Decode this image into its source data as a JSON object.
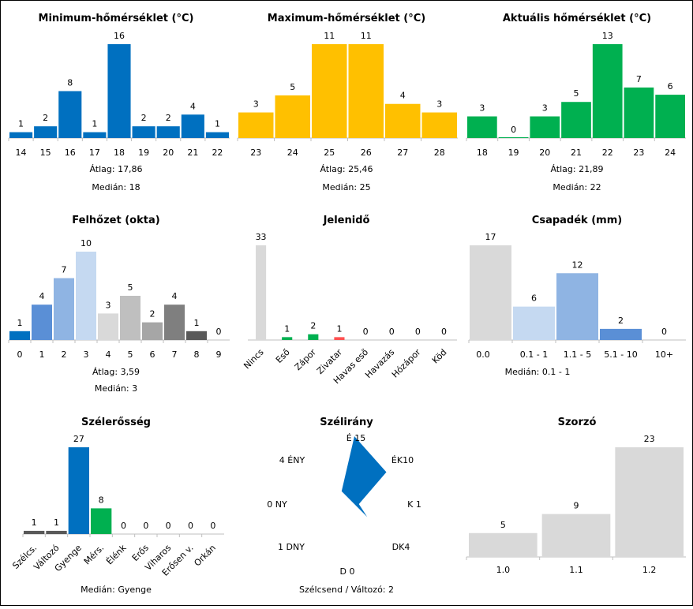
{
  "chart_data": [
    {
      "id": "min",
      "type": "bar",
      "title": "Minimum-hőmérséklet (°C)",
      "categories": [
        "14",
        "15",
        "16",
        "17",
        "18",
        "19",
        "20",
        "21",
        "22"
      ],
      "values": [
        1,
        2,
        8,
        1,
        16,
        2,
        2,
        4,
        1
      ],
      "colors": [
        "#0070c0"
      ],
      "stats": [
        "Átlag: 17,86",
        "Medián: 18"
      ]
    },
    {
      "id": "max",
      "type": "bar",
      "title": "Maximum-hőmérséklet (°C)",
      "categories": [
        "23",
        "24",
        "25",
        "26",
        "27",
        "28"
      ],
      "values": [
        3,
        5,
        11,
        11,
        4,
        3
      ],
      "colors": [
        "#ffc000"
      ],
      "stats": [
        "Átlag: 25,46",
        "Medián: 25"
      ]
    },
    {
      "id": "akt",
      "type": "bar",
      "title": "Aktuális hőmérséklet (°C)",
      "categories": [
        "18",
        "19",
        "20",
        "21",
        "22",
        "23",
        "24"
      ],
      "values": [
        3,
        0,
        3,
        5,
        13,
        7,
        6
      ],
      "colors": [
        "#00b050"
      ],
      "stats": [
        "Átlag: 21,89",
        "Medián: 22"
      ]
    },
    {
      "id": "felho",
      "type": "bar",
      "title": "Felhőzet (okta)",
      "categories": [
        "0",
        "1",
        "2",
        "3",
        "4",
        "5",
        "6",
        "7",
        "8",
        "9"
      ],
      "values": [
        1,
        4,
        7,
        10,
        3,
        5,
        2,
        4,
        1,
        0
      ],
      "colors": [
        "#0070c0",
        "#5a8fd6",
        "#8fb4e3",
        "#c5d9f1",
        "#d9d9d9",
        "#bfbfbf",
        "#a6a6a6",
        "#7f7f7f",
        "#595959",
        "#404040"
      ],
      "stats": [
        "Átlag: 3,59",
        "Medián: 3"
      ]
    },
    {
      "id": "jelen",
      "type": "bar",
      "title": "Jelenidő",
      "categories": [
        "Nincs",
        "Eső",
        "Zápor",
        "Zivatar",
        "Havas eső",
        "Havazás",
        "Hózápor",
        "Köd"
      ],
      "values": [
        33,
        1,
        2,
        1,
        0,
        0,
        0,
        0
      ],
      "colors": [
        "#d9d9d9",
        "#00b050",
        "#00b050",
        "#ff5050",
        "#d9d9d9",
        "#d9d9d9",
        "#d9d9d9",
        "#d9d9d9"
      ],
      "stats": []
    },
    {
      "id": "csap",
      "type": "bar",
      "title": "Csapadék (mm)",
      "categories": [
        "0.0",
        "0.1 - 1",
        "1.1 - 5",
        "5.1 - 10",
        "10+"
      ],
      "values": [
        17,
        6,
        12,
        2,
        0
      ],
      "colors": [
        "#d9d9d9",
        "#c5d9f1",
        "#8fb4e3",
        "#5a8fd6",
        "#0070c0"
      ],
      "stats": [
        "Medián: 0.1 - 1"
      ]
    },
    {
      "id": "szel",
      "type": "bar",
      "title": "Szélerősség",
      "categories": [
        "Szélcs.",
        "Változó",
        "Gyenge",
        "Mérs.",
        "Élénk",
        "Erős",
        "Viharos",
        "Erősen v.",
        "Orkán"
      ],
      "values": [
        1,
        1,
        27,
        8,
        0,
        0,
        0,
        0,
        0
      ],
      "colors": [
        "#595959",
        "#595959",
        "#0070c0",
        "#00b050",
        "#d9d9d9",
        "#d9d9d9",
        "#d9d9d9",
        "#d9d9d9",
        "#d9d9d9"
      ],
      "stats": [
        "Medián: Gyenge"
      ]
    },
    {
      "id": "irany",
      "type": "radar",
      "title": "Szélirány",
      "directions": [
        {
          "name": "É",
          "value": 15,
          "label": "É 15"
        },
        {
          "name": "ÉK",
          "value": 10,
          "label": "ÉK10"
        },
        {
          "name": "K",
          "value": 1,
          "label": "K 1"
        },
        {
          "name": "DK",
          "value": 4,
          "label": "DK4"
        },
        {
          "name": "D",
          "value": 0,
          "label": "D 0"
        },
        {
          "name": "DNY",
          "value": 1,
          "label": "1 DNY"
        },
        {
          "name": "NY",
          "value": 0,
          "label": "0 NY"
        },
        {
          "name": "ÉNY",
          "value": 4,
          "label": "4 ÉNY"
        }
      ],
      "max": 15,
      "color": "#0070c0",
      "stats": [
        "Szélcsend / Változó: 2"
      ]
    },
    {
      "id": "szorzo",
      "type": "bar",
      "title": "Szorzó",
      "categories": [
        "1.0",
        "1.1",
        "1.2"
      ],
      "values": [
        5,
        9,
        23
      ],
      "colors": [
        "#d9d9d9"
      ],
      "stats": []
    }
  ]
}
